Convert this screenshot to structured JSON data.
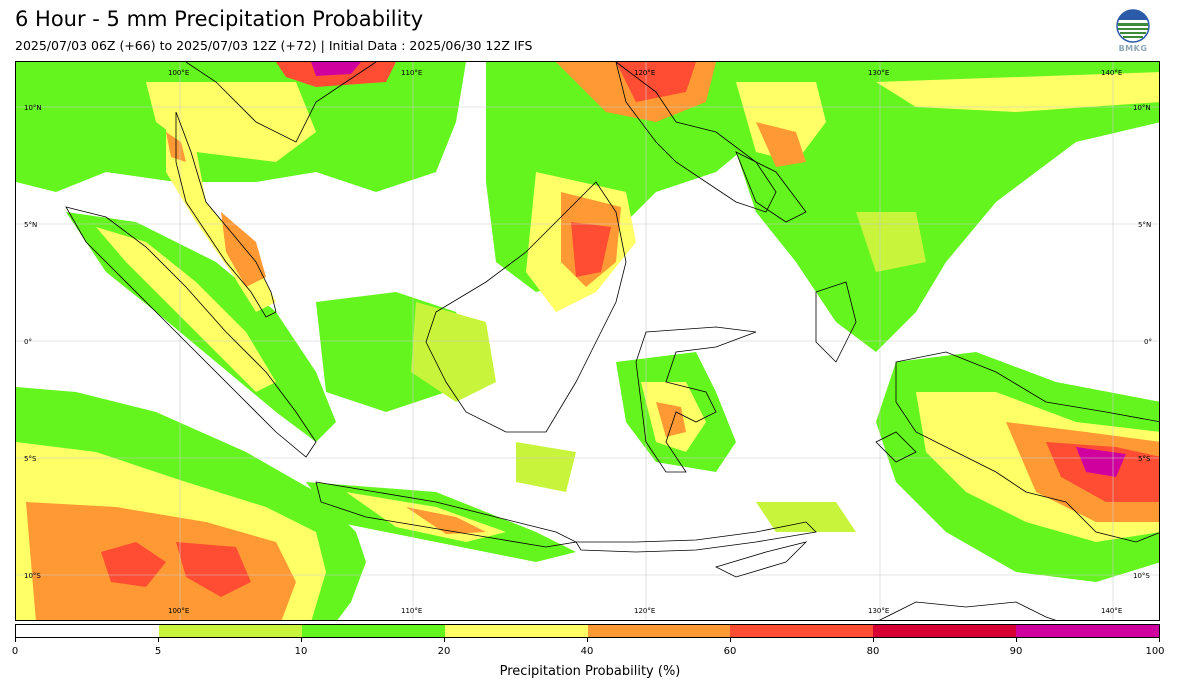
{
  "header": {
    "title": "6 Hour - 5 mm Precipitation Probability",
    "subtitle": "2025/07/03 06Z (+66) to 2025/07/03 12Z (+72) | Initial Data : 2025/06/30 12Z IFS",
    "logo_text": "BMKG",
    "logo_icon": "bmkg-logo-icon"
  },
  "map": {
    "region": "Indonesia",
    "lon_labels": [
      "100°E",
      "110°E",
      "120°E",
      "130°E",
      "140°E"
    ],
    "lat_labels": [
      "10°N",
      "5°N",
      "0°",
      "5°S",
      "10°S"
    ]
  },
  "colorbar": {
    "label": "Precipitation Probability (%)",
    "ticks": [
      "0",
      "5",
      "10",
      "20",
      "40",
      "60",
      "80",
      "90",
      "100"
    ],
    "colors": [
      "#ffffff",
      "#c8f53c",
      "#64f51e",
      "#ffff66",
      "#ff9933",
      "#ff4d33",
      "#d60032",
      "#d0009e"
    ]
  }
}
